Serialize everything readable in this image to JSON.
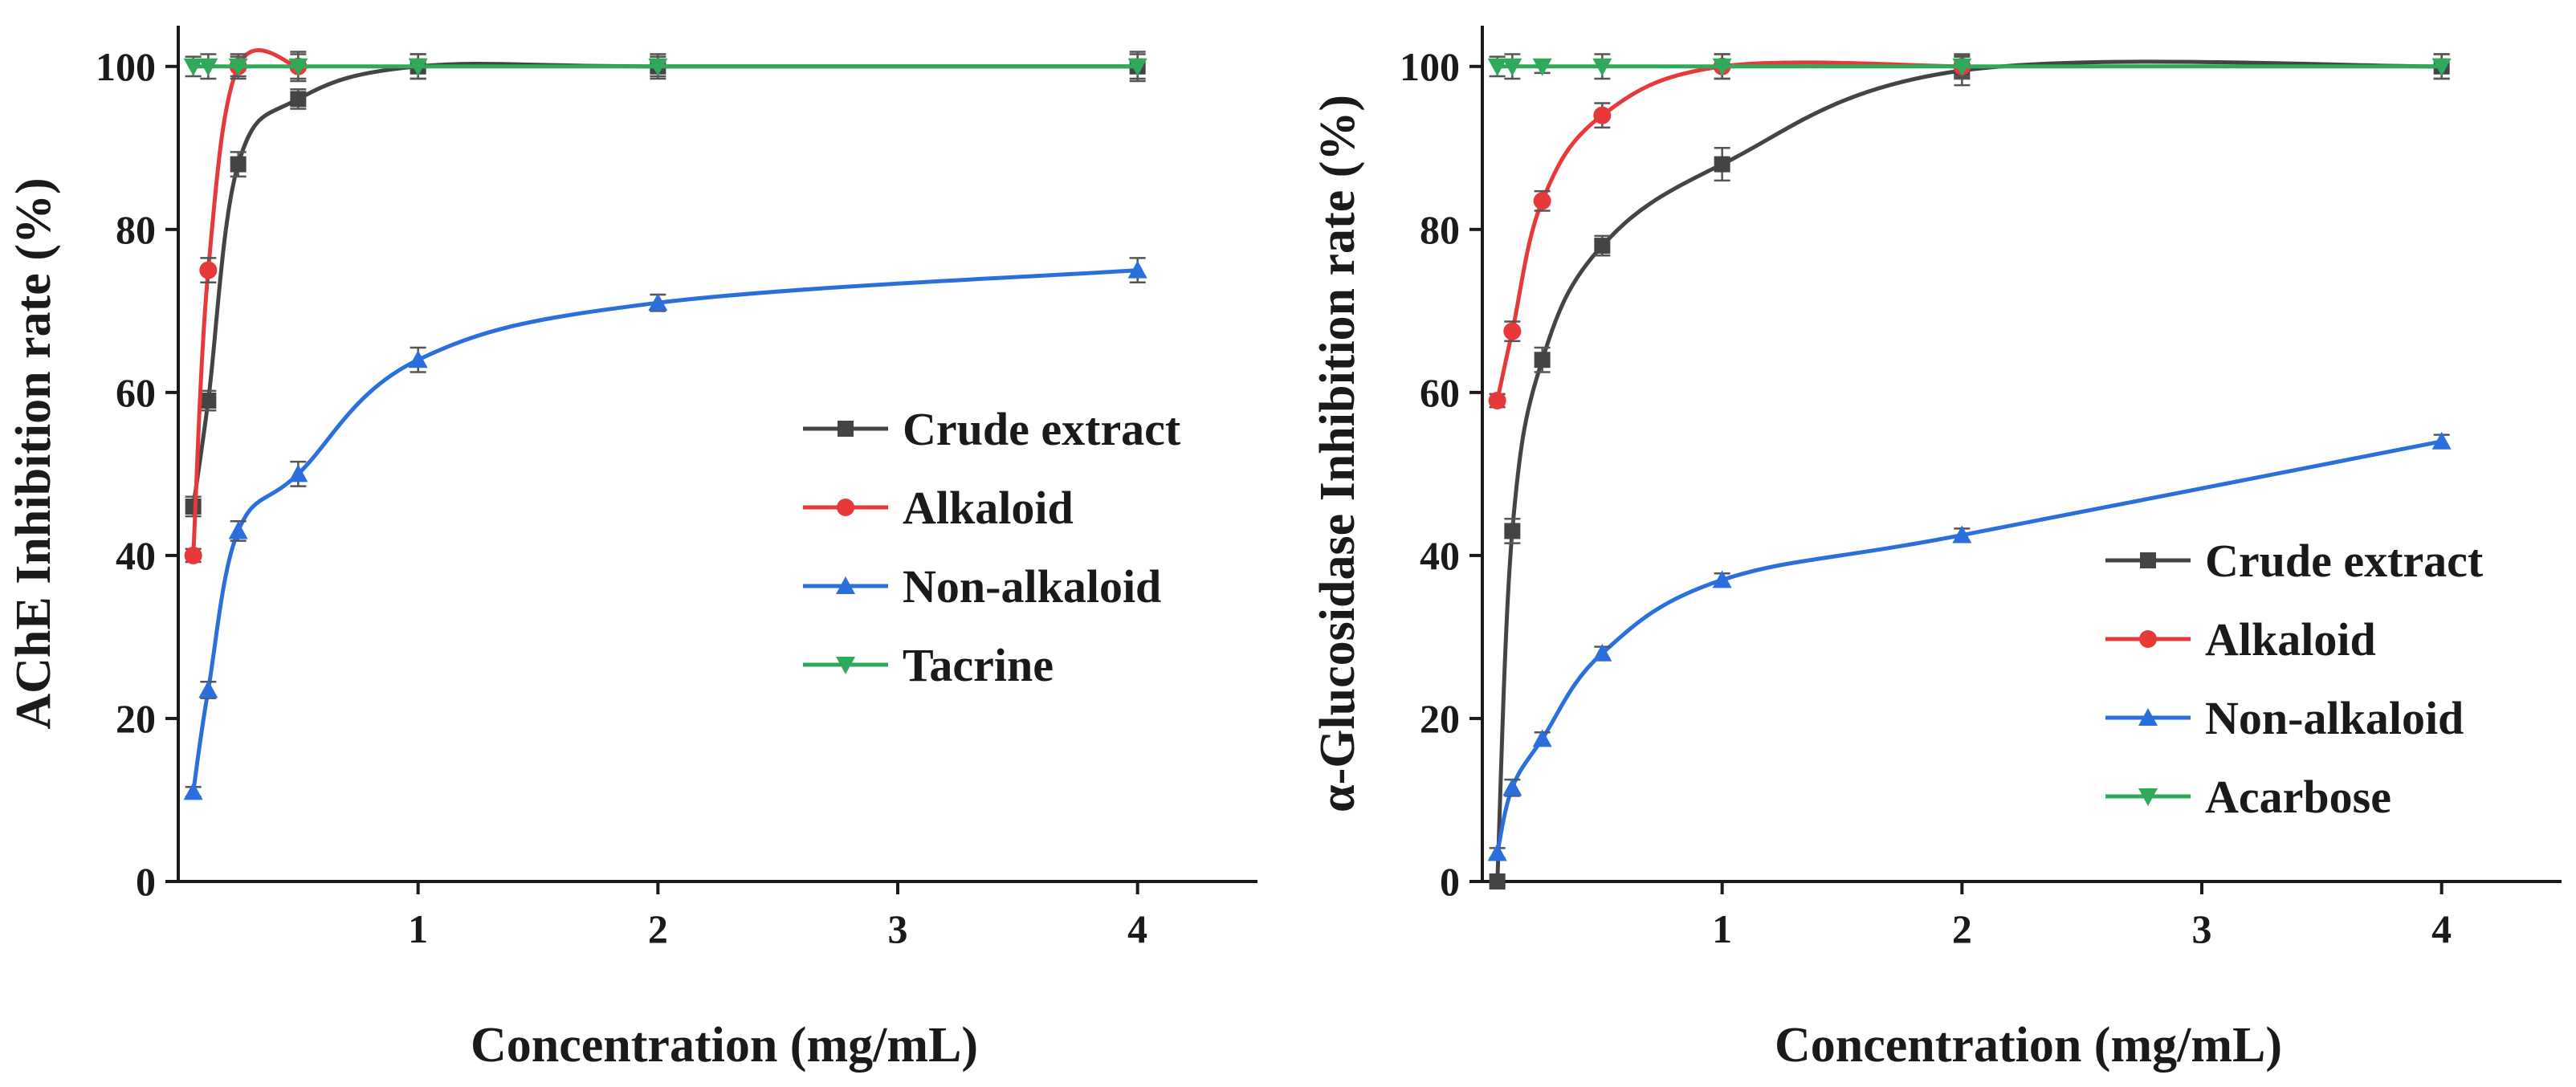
{
  "chart_data": [
    {
      "type": "line",
      "ylabel": "AChE Inhibition rate (%)",
      "xlabel": "Concentration (mg/mL)",
      "xlim": [
        0,
        4.5
      ],
      "ylim": [
        0,
        105
      ],
      "xticks": [
        "1",
        "2",
        "3",
        "4"
      ],
      "yticks": [
        "0",
        "20",
        "40",
        "60",
        "80",
        "100"
      ],
      "legend_position": "center-right",
      "series": [
        {
          "name": "Crude extract",
          "color": "#444444",
          "marker": "square",
          "x": [
            0.0625,
            0.125,
            0.25,
            0.5,
            1,
            2,
            4
          ],
          "y": [
            46,
            59,
            88,
            96,
            100,
            100,
            100
          ],
          "err": [
            1.2,
            1.2,
            1.5,
            1.2,
            1.5,
            1.5,
            1.8
          ]
        },
        {
          "name": "Alkaloid",
          "color": "#e8393a",
          "marker": "circle",
          "x": [
            0.0625,
            0.125,
            0.25,
            0.5
          ],
          "y": [
            40,
            75,
            100,
            100
          ],
          "err": [
            0.8,
            1.5,
            1.5,
            1.8
          ]
        },
        {
          "name": "Non-alkaloid",
          "color": "#2a6fdb",
          "marker": "triangle-up",
          "x": [
            0.0625,
            0.125,
            0.25,
            0.5,
            1,
            2,
            4
          ],
          "y": [
            11,
            23.5,
            43,
            50,
            64,
            71,
            75
          ],
          "err": [
            0.6,
            1.0,
            1.2,
            1.5,
            1.5,
            1.0,
            1.5
          ]
        },
        {
          "name": "Tacrine",
          "color": "#2eaa5a",
          "marker": "triangle-down",
          "x": [
            0.0625,
            0.125,
            0.25,
            0.5,
            1,
            2,
            4
          ],
          "y": [
            100,
            100,
            100,
            100,
            100,
            100,
            100
          ],
          "err": [
            1.2,
            1.5,
            1.2,
            1.5,
            1.5,
            1.2,
            1.5
          ]
        }
      ]
    },
    {
      "type": "line",
      "ylabel": "α-Glucosidase Inhibition rate (%)",
      "xlabel": "Concentration (mg/mL)",
      "xlim": [
        0,
        4.5
      ],
      "ylim": [
        0,
        105
      ],
      "xticks": [
        "1",
        "2",
        "3",
        "4"
      ],
      "yticks": [
        "0",
        "20",
        "40",
        "60",
        "80",
        "100"
      ],
      "legend_position": "bottom-right",
      "series": [
        {
          "name": "Crude extract",
          "color": "#444444",
          "marker": "square",
          "x": [
            0.0625,
            0.125,
            0.25,
            0.5,
            1,
            2,
            4
          ],
          "y": [
            0,
            43,
            64,
            78,
            88,
            99.5,
            100
          ],
          "err": [
            0.5,
            1.5,
            1.5,
            1.2,
            2.0,
            1.8,
            1.5
          ]
        },
        {
          "name": "Alkaloid",
          "color": "#e8393a",
          "marker": "circle",
          "x": [
            0.0625,
            0.125,
            0.25,
            0.5,
            1,
            2
          ],
          "y": [
            59,
            67.5,
            83.5,
            94,
            100,
            100
          ],
          "err": [
            0.8,
            1.2,
            1.2,
            1.5,
            1.5,
            1.5
          ]
        },
        {
          "name": "Non-alkaloid",
          "color": "#2a6fdb",
          "marker": "triangle-up",
          "x": [
            0.0625,
            0.125,
            0.25,
            0.5,
            1,
            2,
            4
          ],
          "y": [
            3.5,
            11.5,
            17.5,
            28,
            37,
            42.5,
            54
          ],
          "err": [
            0.6,
            1.0,
            0.8,
            0.8,
            0.8,
            0.8,
            0.8
          ]
        },
        {
          "name": "Acarbose",
          "color": "#2eaa5a",
          "marker": "triangle-down",
          "x": [
            0.0625,
            0.125,
            0.25,
            0.5,
            1,
            2,
            4
          ],
          "y": [
            100,
            100,
            100,
            100,
            100,
            100,
            100
          ],
          "err": [
            1.2,
            1.5,
            0.8,
            1.5,
            1.5,
            1.2,
            1.5
          ]
        }
      ]
    }
  ]
}
